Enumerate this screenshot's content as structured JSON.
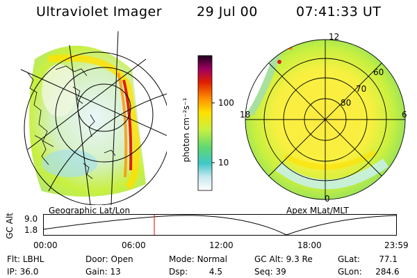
{
  "header": {
    "instrument": "Ultraviolet Imager",
    "date": "29 Jul 00",
    "time": "07:41:33 UT"
  },
  "colorbar": {
    "label_html": "photon cm",
    "ticks": [
      "100",
      "10"
    ],
    "unit_text": "photon cm⁻²s⁻¹"
  },
  "panels": {
    "left_caption": "Geographic Lat/Lon",
    "right_caption": "Apex MLat/MLT",
    "right_lat_labels": [
      "60",
      "70",
      "80"
    ],
    "right_mlt_labels": [
      "12",
      "18",
      "6",
      "0"
    ]
  },
  "altitude_plot": {
    "axis_label": "GC Alt",
    "y_ticks": [
      "9.0",
      "1.8"
    ],
    "x_ticks": [
      "00:00",
      "06:00",
      "12:00",
      "18:00",
      "23:59"
    ]
  },
  "status": {
    "row1": [
      {
        "key": "Flt:",
        "value": "LBHL"
      },
      {
        "key": "Door:",
        "value": "Open"
      },
      {
        "key": "Mode:",
        "value": "Normal"
      },
      {
        "key": "GC Alt:",
        "value": "9.3 Re"
      },
      {
        "key": "GLat:",
        "value": "77.1"
      }
    ],
    "row2": [
      {
        "key": "IP:",
        "value": "36.0"
      },
      {
        "key": "Gain:",
        "value": "13"
      },
      {
        "key": "Dsp:",
        "value": "4.5"
      },
      {
        "key": "Seq:",
        "value": "39"
      },
      {
        "key": "GLon:",
        "value": "284.6"
      }
    ]
  },
  "colors": {
    "aurora_low": "#d8f0f8",
    "aurora_mid": "#c8f040",
    "aurora_high": "#ffe000",
    "aurora_peak": "#e02000",
    "marker": "#e00000"
  }
}
